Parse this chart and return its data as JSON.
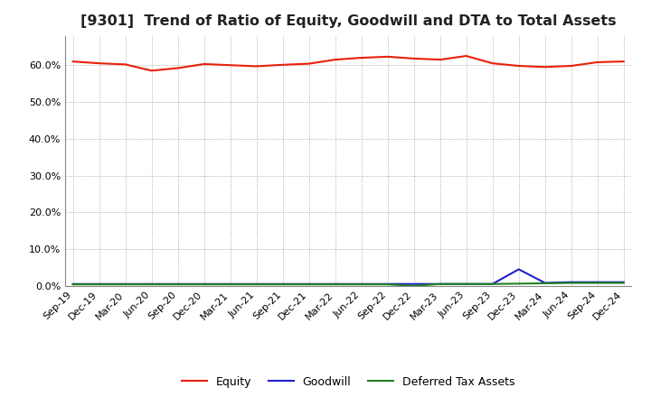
{
  "title": "[9301]  Trend of Ratio of Equity, Goodwill and DTA to Total Assets",
  "x_labels": [
    "Sep-19",
    "Dec-19",
    "Mar-20",
    "Jun-20",
    "Sep-20",
    "Dec-20",
    "Mar-21",
    "Jun-21",
    "Sep-21",
    "Dec-21",
    "Mar-22",
    "Jun-22",
    "Sep-22",
    "Dec-22",
    "Mar-23",
    "Jun-23",
    "Sep-23",
    "Dec-23",
    "Mar-24",
    "Jun-24",
    "Sep-24",
    "Dec-24"
  ],
  "equity": [
    61.0,
    60.5,
    60.2,
    58.5,
    59.2,
    60.3,
    60.0,
    59.7,
    60.1,
    60.4,
    61.5,
    62.0,
    62.3,
    61.8,
    61.5,
    62.5,
    60.5,
    59.8,
    59.5,
    59.8,
    60.8,
    61.0
  ],
  "goodwill": [
    0.5,
    0.5,
    0.5,
    0.5,
    0.5,
    0.5,
    0.5,
    0.5,
    0.5,
    0.5,
    0.5,
    0.5,
    0.5,
    0.5,
    0.5,
    0.5,
    0.5,
    4.5,
    0.8,
    1.0,
    1.0,
    1.0
  ],
  "dta": [
    0.4,
    0.4,
    0.4,
    0.4,
    0.4,
    0.4,
    0.4,
    0.4,
    0.4,
    0.4,
    0.4,
    0.4,
    0.4,
    0.0,
    0.5,
    0.5,
    0.5,
    0.6,
    0.7,
    0.8,
    0.8,
    0.8
  ],
  "equity_color": "#e8200a",
  "goodwill_color": "#2020cc",
  "dta_color": "#208020",
  "background_color": "#ffffff",
  "grid_color": "#999999",
  "ylim": [
    0,
    68
  ],
  "yticks": [
    0.0,
    10.0,
    20.0,
    30.0,
    40.0,
    50.0,
    60.0
  ],
  "title_fontsize": 11.5,
  "tick_fontsize": 8,
  "legend_labels": [
    "Equity",
    "Goodwill",
    "Deferred Tax Assets"
  ]
}
